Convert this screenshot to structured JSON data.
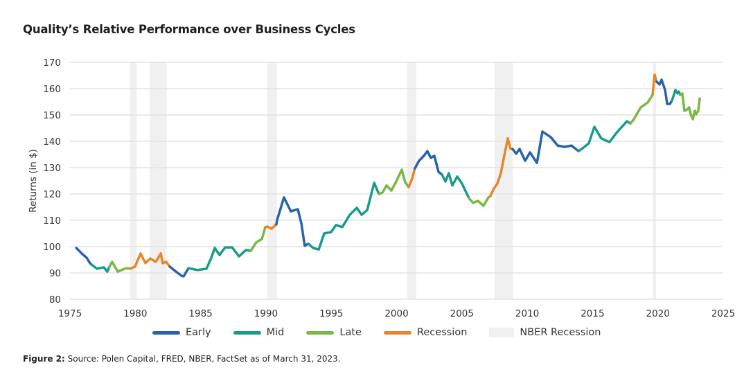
{
  "chart_data": {
    "type": "line",
    "title": "Quality’s Relative Performance over Business Cycles",
    "xlabel": "",
    "ylabel": "Returns (in $)",
    "xlim": [
      1975,
      2025
    ],
    "ylim": [
      80,
      170
    ],
    "xticks": [
      "1975",
      "1980",
      "1985",
      "1990",
      "1995",
      "2000",
      "2005",
      "2010",
      "2015",
      "2020",
      "2025"
    ],
    "yticks": [
      "80",
      "90",
      "100",
      "110",
      "120",
      "130",
      "140",
      "150",
      "160",
      "170"
    ],
    "grid": "horizontal",
    "legend_position": "bottom",
    "colors": {
      "Early": "#2762ad",
      "Mid": "#179b8c",
      "Late": "#78b843",
      "Recession": "#e5862a",
      "NBER Recession": "#f0f0f0"
    },
    "legend": [
      "Early",
      "Mid",
      "Late",
      "Recession",
      "NBER Recession"
    ],
    "nber_recessions": [
      [
        1979.6,
        1980.1
      ],
      [
        1981.1,
        1982.4
      ],
      [
        1990.1,
        1990.85
      ],
      [
        2000.8,
        2001.5
      ],
      [
        2007.5,
        2008.9
      ],
      [
        2019.6,
        2019.86
      ]
    ],
    "segments": [
      {
        "phase": "Early",
        "points": [
          [
            1975.48,
            99.5
          ],
          [
            1975.9,
            97.4
          ],
          [
            1976.27,
            95.8
          ],
          [
            1976.54,
            93.7
          ],
          [
            1976.64,
            93.2
          ]
        ]
      },
      {
        "phase": "Mid",
        "points": [
          [
            1976.64,
            93.2
          ],
          [
            1977.07,
            91.6
          ],
          [
            1977.6,
            92.1
          ],
          [
            1977.86,
            90.5
          ],
          [
            1978.02,
            92.4
          ]
        ]
      },
      {
        "phase": "Late",
        "points": [
          [
            1978.02,
            92.4
          ],
          [
            1978.23,
            94.2
          ],
          [
            1978.66,
            90.5
          ],
          [
            1979.19,
            91.6
          ],
          [
            1979.45,
            91.8
          ],
          [
            1979.61,
            91.6
          ]
        ]
      },
      {
        "phase": "Recession",
        "points": [
          [
            1979.61,
            91.6
          ],
          [
            1979.98,
            92.4
          ],
          [
            1980.41,
            97.4
          ],
          [
            1980.78,
            93.7
          ],
          [
            1981.15,
            95.5
          ],
          [
            1981.57,
            94.2
          ],
          [
            1981.95,
            97.4
          ],
          [
            1982.1,
            93.7
          ],
          [
            1982.37,
            94.2
          ],
          [
            1982.64,
            92.4
          ]
        ]
      },
      {
        "phase": "Early",
        "points": [
          [
            1982.64,
            92.4
          ],
          [
            1983.17,
            90.3
          ],
          [
            1983.54,
            88.9
          ],
          [
            1983.7,
            88.7
          ],
          [
            1984.07,
            91.8
          ]
        ]
      },
      {
        "phase": "Mid",
        "points": [
          [
            1984.07,
            91.8
          ],
          [
            1984.76,
            91.1
          ],
          [
            1985.45,
            91.6
          ],
          [
            1985.82,
            95.8
          ],
          [
            1986.08,
            99.5
          ],
          [
            1986.45,
            96.8
          ],
          [
            1986.88,
            99.7
          ],
          [
            1987.41,
            99.7
          ],
          [
            1987.94,
            96.3
          ],
          [
            1988.47,
            98.7
          ],
          [
            1988.84,
            98.4
          ]
        ]
      },
      {
        "phase": "Late",
        "points": [
          [
            1988.84,
            98.4
          ],
          [
            1989.26,
            101.6
          ],
          [
            1989.69,
            102.9
          ],
          [
            1989.95,
            107.4
          ]
        ]
      },
      {
        "phase": "Recession",
        "points": [
          [
            1989.95,
            107.4
          ],
          [
            1990.11,
            107.6
          ],
          [
            1990.43,
            106.8
          ],
          [
            1990.8,
            108.5
          ]
        ]
      },
      {
        "phase": "Early",
        "points": [
          [
            1990.8,
            108.5
          ],
          [
            1990.85,
            110
          ],
          [
            1991.38,
            118.7
          ],
          [
            1991.91,
            113.4
          ],
          [
            1992.44,
            114.2
          ],
          [
            1992.71,
            108.9
          ],
          [
            1992.97,
            100.3
          ],
          [
            1993.24,
            101.1
          ]
        ]
      },
      {
        "phase": "Mid",
        "points": [
          [
            1993.24,
            101.1
          ],
          [
            1993.61,
            99.5
          ],
          [
            1994.04,
            98.9
          ],
          [
            1994.46,
            105
          ],
          [
            1994.99,
            105.5
          ],
          [
            1995.36,
            108.2
          ],
          [
            1995.84,
            107.4
          ],
          [
            1996.42,
            112.1
          ],
          [
            1996.95,
            114.7
          ],
          [
            1997.32,
            112.1
          ],
          [
            1997.75,
            113.9
          ],
          [
            1998.28,
            124.2
          ],
          [
            1998.65,
            120
          ]
        ]
      },
      {
        "phase": "Late",
        "points": [
          [
            1998.65,
            120
          ],
          [
            1998.91,
            120.5
          ],
          [
            1999.23,
            123.2
          ],
          [
            1999.6,
            121.3
          ],
          [
            1999.97,
            124.7
          ],
          [
            2000.4,
            129.2
          ],
          [
            2000.66,
            124.5
          ],
          [
            2000.93,
            122.6
          ]
        ]
      },
      {
        "phase": "Recession",
        "points": [
          [
            2000.93,
            122.6
          ],
          [
            2001.19,
            125.8
          ],
          [
            2001.4,
            129.7
          ]
        ]
      },
      {
        "phase": "Early",
        "points": [
          [
            2001.4,
            129.7
          ],
          [
            2001.72,
            132.6
          ],
          [
            2002.09,
            134.5
          ],
          [
            2002.36,
            136.3
          ],
          [
            2002.62,
            133.7
          ],
          [
            2002.89,
            134.5
          ],
          [
            2003.21,
            128.4
          ],
          [
            2003.47,
            127.4
          ]
        ]
      },
      {
        "phase": "Mid",
        "points": [
          [
            2003.47,
            127.4
          ],
          [
            2003.74,
            124.7
          ],
          [
            2004.0,
            127.9
          ],
          [
            2004.27,
            123.2
          ],
          [
            2004.64,
            126.6
          ],
          [
            2005.01,
            123.9
          ],
          [
            2005.54,
            118.4
          ]
        ]
      },
      {
        "phase": "Late",
        "points": [
          [
            2005.54,
            118.4
          ],
          [
            2005.86,
            116.6
          ],
          [
            2006.23,
            117.4
          ],
          [
            2006.65,
            115.5
          ],
          [
            2007.03,
            118.7
          ],
          [
            2007.18,
            119.2
          ]
        ]
      },
      {
        "phase": "Recession",
        "points": [
          [
            2007.18,
            119.2
          ],
          [
            2007.45,
            122.1
          ],
          [
            2007.71,
            123.9
          ],
          [
            2007.98,
            127.9
          ],
          [
            2008.24,
            134.5
          ],
          [
            2008.51,
            141.1
          ],
          [
            2008.72,
            137.1
          ],
          [
            2008.88,
            137.1
          ]
        ]
      },
      {
        "phase": "Early",
        "points": [
          [
            2008.88,
            137.1
          ],
          [
            2009.15,
            135.3
          ],
          [
            2009.41,
            137.1
          ],
          [
            2009.84,
            132.6
          ],
          [
            2010.21,
            135.8
          ],
          [
            2010.74,
            131.8
          ],
          [
            2011.16,
            143.7
          ],
          [
            2011.8,
            141.6
          ],
          [
            2012.33,
            138.4
          ],
          [
            2012.86,
            137.9
          ],
          [
            2013.39,
            138.4
          ],
          [
            2013.92,
            136.3
          ]
        ]
      },
      {
        "phase": "Mid",
        "points": [
          [
            2013.92,
            136.3
          ],
          [
            2014.18,
            137.1
          ],
          [
            2014.71,
            139.2
          ],
          [
            2015.14,
            145.5
          ],
          [
            2015.67,
            141.1
          ],
          [
            2016.3,
            139.7
          ],
          [
            2016.83,
            143.2
          ],
          [
            2017.63,
            147.6
          ],
          [
            2017.9,
            146.8
          ]
        ]
      },
      {
        "phase": "Late",
        "points": [
          [
            2017.9,
            146.8
          ],
          [
            2018.16,
            148.4
          ],
          [
            2018.69,
            152.9
          ],
          [
            2019.22,
            154.7
          ],
          [
            2019.59,
            157.6
          ],
          [
            2019.6,
            158.2
          ]
        ]
      },
      {
        "phase": "Recession",
        "points": [
          [
            2019.6,
            158.2
          ],
          [
            2019.75,
            165.3
          ],
          [
            2019.91,
            162.6
          ]
        ]
      },
      {
        "phase": "Early",
        "points": [
          [
            2019.91,
            162.6
          ],
          [
            2020.12,
            161.6
          ],
          [
            2020.28,
            163.4
          ],
          [
            2020.55,
            159.5
          ],
          [
            2020.71,
            154.2
          ],
          [
            2020.92,
            154.2
          ],
          [
            2021.08,
            155.5
          ]
        ]
      },
      {
        "phase": "Mid",
        "points": [
          [
            2021.08,
            155.5
          ],
          [
            2021.34,
            159.5
          ],
          [
            2021.5,
            158.2
          ],
          [
            2021.6,
            158.9
          ],
          [
            2021.71,
            157.6
          ]
        ]
      },
      {
        "phase": "Late",
        "points": [
          [
            2021.71,
            157.6
          ],
          [
            2021.87,
            158.2
          ],
          [
            2022.03,
            151.6
          ],
          [
            2022.24,
            152.1
          ],
          [
            2022.4,
            152.9
          ],
          [
            2022.51,
            150.3
          ],
          [
            2022.67,
            148.4
          ],
          [
            2022.83,
            151.6
          ],
          [
            2022.93,
            150.3
          ],
          [
            2023.09,
            151.6
          ],
          [
            2023.2,
            156.3
          ]
        ]
      }
    ]
  },
  "legend_labels": {
    "early": "Early",
    "mid": "Mid",
    "late": "Late",
    "recession": "Recession",
    "nber": "NBER Recession"
  },
  "caption": {
    "label": "Figure 2:",
    "text": " Source: Polen Capital, FRED, NBER, FactSet as of March 31, 2023."
  }
}
